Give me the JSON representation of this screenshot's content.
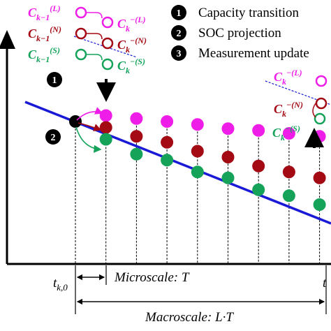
{
  "colors": {
    "large": "#ee1ee8",
    "nominal": "#a30a14",
    "small": "#15a35a",
    "line": "#1a1ad6",
    "axis": "#000000"
  },
  "legend": {
    "items": [
      {
        "num": "1",
        "text": "Capacity transition"
      },
      {
        "num": "2",
        "text": "SOC projection"
      },
      {
        "num": "3",
        "text": "Measurement update"
      }
    ]
  },
  "left_inset": {
    "step_num": "1",
    "rows": [
      {
        "from": "C",
        "from_sub": "k−1",
        "from_sup": "(L)",
        "to": "C",
        "to_sub": "k",
        "to_sup": "−(L)",
        "color_key": "large"
      },
      {
        "from": "C",
        "from_sub": "k−1",
        "from_sup": "(N)",
        "to": "C",
        "to_sub": "k",
        "to_sup": "−(N)",
        "color_key": "nominal"
      },
      {
        "from": "C",
        "from_sub": "k−1",
        "from_sup": "(S)",
        "to": "C",
        "to_sub": "k",
        "to_sup": "−(S)",
        "color_key": "small"
      }
    ]
  },
  "right_inset": {
    "labels": [
      {
        "base": "C",
        "sub": "k",
        "sup": "−(L)",
        "color_key": "large"
      },
      {
        "base": "C",
        "sub": "k",
        "sup": "−(N)",
        "color_key": "nominal"
      },
      {
        "base": "C",
        "sub": "k",
        "sup": "−(S)",
        "color_key": "small"
      }
    ]
  },
  "projection_step": "2",
  "axis": {
    "t_start_base": "t",
    "t_start_sub": "k,0",
    "t_end_base": "t"
  },
  "micro_label": "Microscale: T",
  "macro_label": "Macroscale: L·T",
  "points": [
    {
      "x": 0,
      "large": null,
      "nominal": 0,
      "small": null
    },
    {
      "x": 1,
      "large": 0.5,
      "nominal": -0.5,
      "small": -1.5
    },
    {
      "x": 2,
      "large": 0.25,
      "nominal": -1.25,
      "small": -2.75
    },
    {
      "x": 3,
      "large": 0.0,
      "nominal": -1.75,
      "small": -3.25
    },
    {
      "x": 4,
      "large": -0.25,
      "nominal": -2.5,
      "small": -4.25
    },
    {
      "x": 5,
      "large": -0.6,
      "nominal": -3.0,
      "small": -4.75
    },
    {
      "x": 6,
      "large": -0.75,
      "nominal": -3.75,
      "small": -5.75
    },
    {
      "x": 7,
      "large": -1.0,
      "nominal": -4.25,
      "small": -6.25
    },
    {
      "x": 8,
      "large": -1.25,
      "nominal": -4.75,
      "small": -7.0
    }
  ]
}
